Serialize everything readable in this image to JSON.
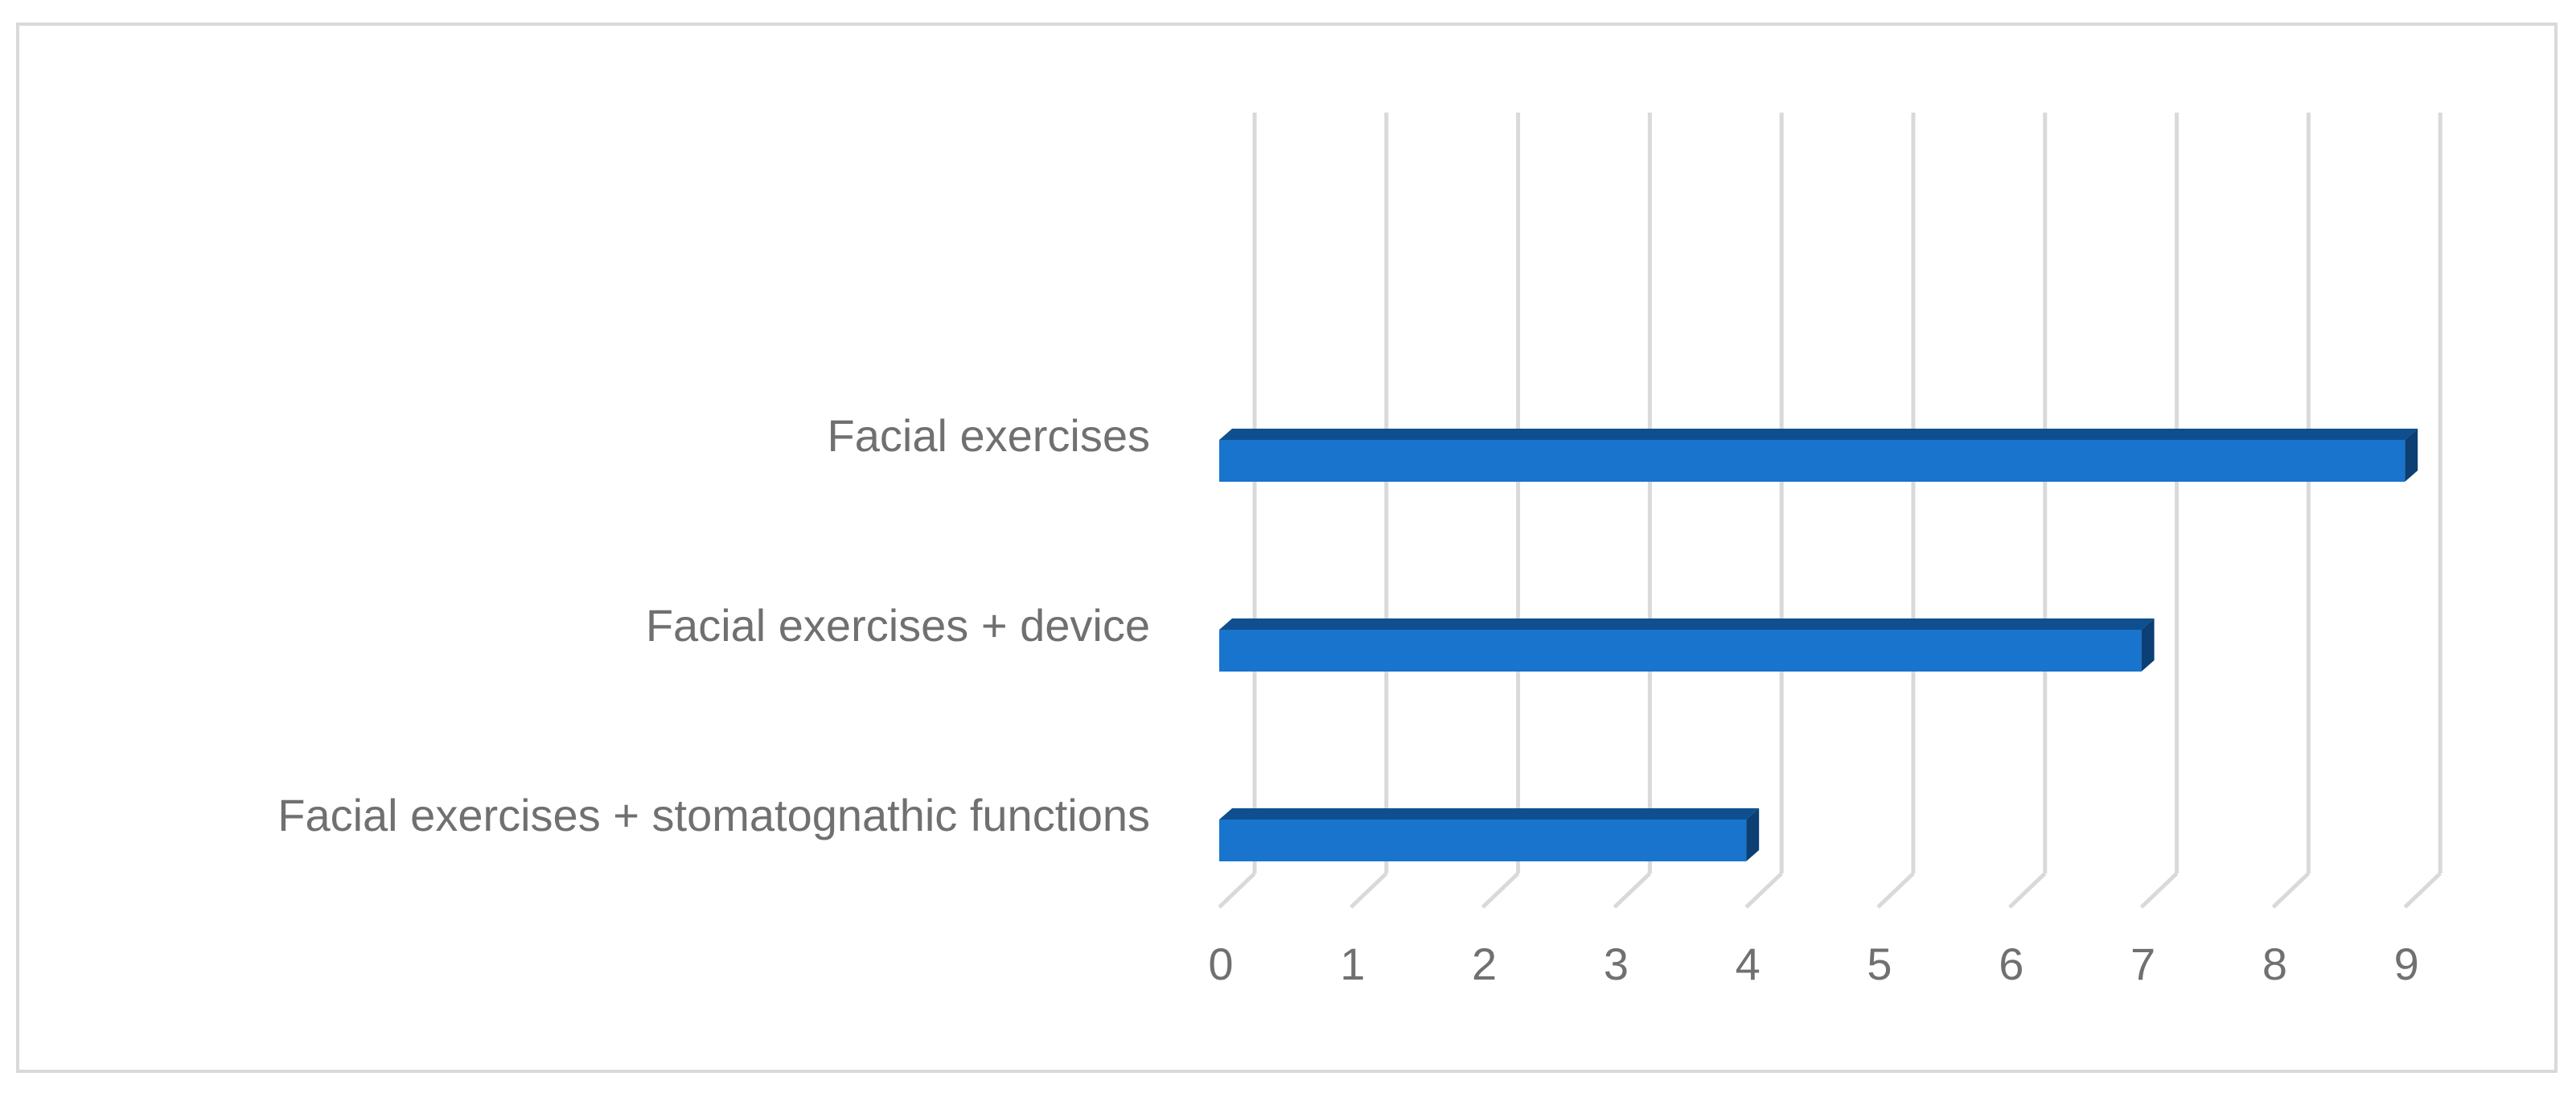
{
  "chart_data": {
    "type": "bar",
    "orientation": "horizontal",
    "style": "3d",
    "categories": [
      "Facial exercises",
      "Facial exercises + device",
      "Facial exercises + stomatognathic functions"
    ],
    "values": [
      9,
      7,
      4
    ],
    "xlim": [
      0,
      9
    ],
    "x_ticks": [
      "0",
      "1",
      "2",
      "3",
      "4",
      "5",
      "6",
      "7",
      "8",
      "9"
    ],
    "grid": true,
    "legend": "none",
    "colors": {
      "bar_front": "#1874cd",
      "bar_top": "#0f4f8f",
      "bar_side": "#0c3f73",
      "gridline": "#d9d9d9",
      "text": "#707070"
    }
  }
}
